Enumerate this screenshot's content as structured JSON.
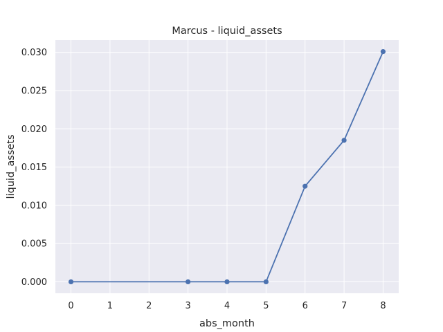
{
  "chart_data": {
    "type": "line",
    "title": "Marcus - liquid_assets",
    "xlabel": "abs_month",
    "ylabel": "liquid_assets",
    "x_ticks": [
      0,
      1,
      2,
      3,
      4,
      5,
      6,
      7,
      8
    ],
    "y_ticks": [
      0.0,
      0.005,
      0.01,
      0.015,
      0.02,
      0.025,
      0.03
    ],
    "y_tick_labels": [
      "0.000",
      "0.005",
      "0.010",
      "0.015",
      "0.020",
      "0.025",
      "0.030"
    ],
    "xlim": [
      -0.4,
      8.4
    ],
    "ylim": [
      -0.0015,
      0.0316
    ],
    "grid": true,
    "series": [
      {
        "x": [
          0,
          3,
          4,
          5,
          6,
          7,
          8
        ],
        "y": [
          0.0,
          0.0,
          0.0,
          0.0,
          0.0125,
          0.0185,
          0.0301
        ],
        "color": "#4c72b0",
        "marker": "circle"
      }
    ]
  }
}
